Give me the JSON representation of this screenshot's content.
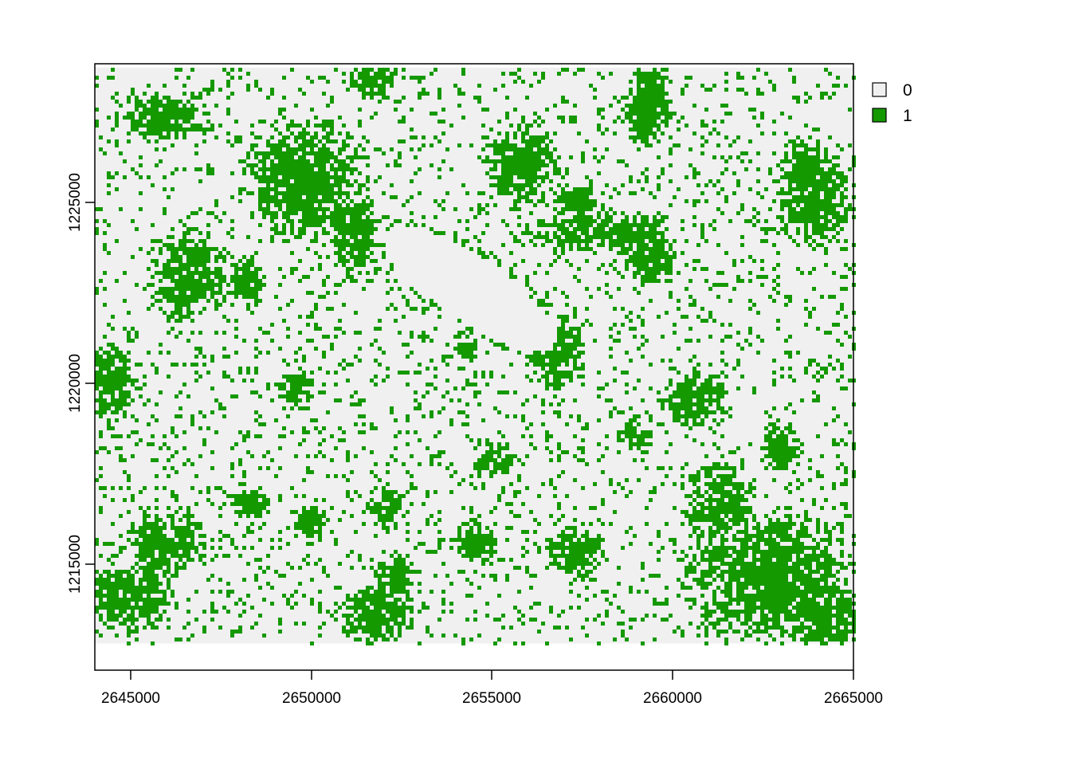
{
  "map": {
    "type": "raster",
    "title": "",
    "colors": {
      "class_0": "#f0f0f0",
      "class_1": "#149900",
      "axis": "#000000",
      "background": "#ffffff"
    },
    "x_axis": {
      "range": [
        2644000,
        2665000
      ],
      "ticks": [
        2645000,
        2650000,
        2655000,
        2660000,
        2665000
      ],
      "tick_labels": [
        "2645000",
        "2650000",
        "2655000",
        "2660000",
        "2665000"
      ]
    },
    "y_axis": {
      "range": [
        1212400,
        1228300
      ],
      "ticks": [
        1215000,
        1220000,
        1225000
      ],
      "tick_labels": [
        "1215000",
        "1220000",
        "1225000"
      ]
    },
    "raster_extent": {
      "x": [
        2644000,
        2665000
      ],
      "y": [
        1213100,
        1228200
      ]
    },
    "legend": [
      {
        "value": "0",
        "color": "#f0f0f0"
      },
      {
        "value": "1",
        "color": "#149900"
      }
    ],
    "green_patches": [
      {
        "cx": 2649800,
        "cy": 1225200,
        "rx": 1300,
        "ry": 1200
      },
      {
        "cx": 2651200,
        "cy": 1223800,
        "rx": 500,
        "ry": 900
      },
      {
        "cx": 2646600,
        "cy": 1222800,
        "rx": 800,
        "ry": 900
      },
      {
        "cx": 2648200,
        "cy": 1222600,
        "rx": 400,
        "ry": 500
      },
      {
        "cx": 2646000,
        "cy": 1226900,
        "rx": 1000,
        "ry": 500
      },
      {
        "cx": 2644500,
        "cy": 1219900,
        "rx": 500,
        "ry": 800
      },
      {
        "cx": 2651700,
        "cy": 1228000,
        "rx": 500,
        "ry": 500
      },
      {
        "cx": 2658000,
        "cy": 1223900,
        "rx": 1600,
        "ry": 400
      },
      {
        "cx": 2659300,
        "cy": 1223300,
        "rx": 700,
        "ry": 600
      },
      {
        "cx": 2657300,
        "cy": 1224700,
        "rx": 600,
        "ry": 300
      },
      {
        "cx": 2659300,
        "cy": 1227200,
        "rx": 500,
        "ry": 900
      },
      {
        "cx": 2655800,
        "cy": 1225600,
        "rx": 800,
        "ry": 800
      },
      {
        "cx": 2663900,
        "cy": 1224900,
        "rx": 800,
        "ry": 1100
      },
      {
        "cx": 2656800,
        "cy": 1220700,
        "rx": 600,
        "ry": 700
      },
      {
        "cx": 2654300,
        "cy": 1220800,
        "rx": 300,
        "ry": 300
      },
      {
        "cx": 2660700,
        "cy": 1219500,
        "rx": 800,
        "ry": 600
      },
      {
        "cx": 2661300,
        "cy": 1216800,
        "rx": 700,
        "ry": 800
      },
      {
        "cx": 2662600,
        "cy": 1214900,
        "rx": 1800,
        "ry": 1300
      },
      {
        "cx": 2664200,
        "cy": 1213900,
        "rx": 900,
        "ry": 800
      },
      {
        "cx": 2651800,
        "cy": 1213800,
        "rx": 800,
        "ry": 600
      },
      {
        "cx": 2652300,
        "cy": 1214800,
        "rx": 500,
        "ry": 500
      },
      {
        "cx": 2646000,
        "cy": 1215700,
        "rx": 800,
        "ry": 700
      },
      {
        "cx": 2644900,
        "cy": 1214300,
        "rx": 900,
        "ry": 700
      },
      {
        "cx": 2652000,
        "cy": 1216700,
        "rx": 400,
        "ry": 400
      },
      {
        "cx": 2648300,
        "cy": 1216800,
        "rx": 500,
        "ry": 300
      },
      {
        "cx": 2649600,
        "cy": 1219800,
        "rx": 400,
        "ry": 400
      },
      {
        "cx": 2657300,
        "cy": 1215500,
        "rx": 600,
        "ry": 500
      },
      {
        "cx": 2655100,
        "cy": 1217900,
        "rx": 500,
        "ry": 400
      },
      {
        "cx": 2663000,
        "cy": 1218300,
        "rx": 400,
        "ry": 500
      },
      {
        "cx": 2654500,
        "cy": 1215700,
        "rx": 500,
        "ry": 400
      },
      {
        "cx": 2650000,
        "cy": 1216300,
        "rx": 400,
        "ry": 300
      },
      {
        "cx": 2659000,
        "cy": 1218600,
        "rx": 400,
        "ry": 300
      }
    ],
    "empty_zone": {
      "cx": 2654400,
      "cy": 1222400,
      "rx": 2800,
      "ry": 850,
      "rotation_deg": 34
    }
  }
}
